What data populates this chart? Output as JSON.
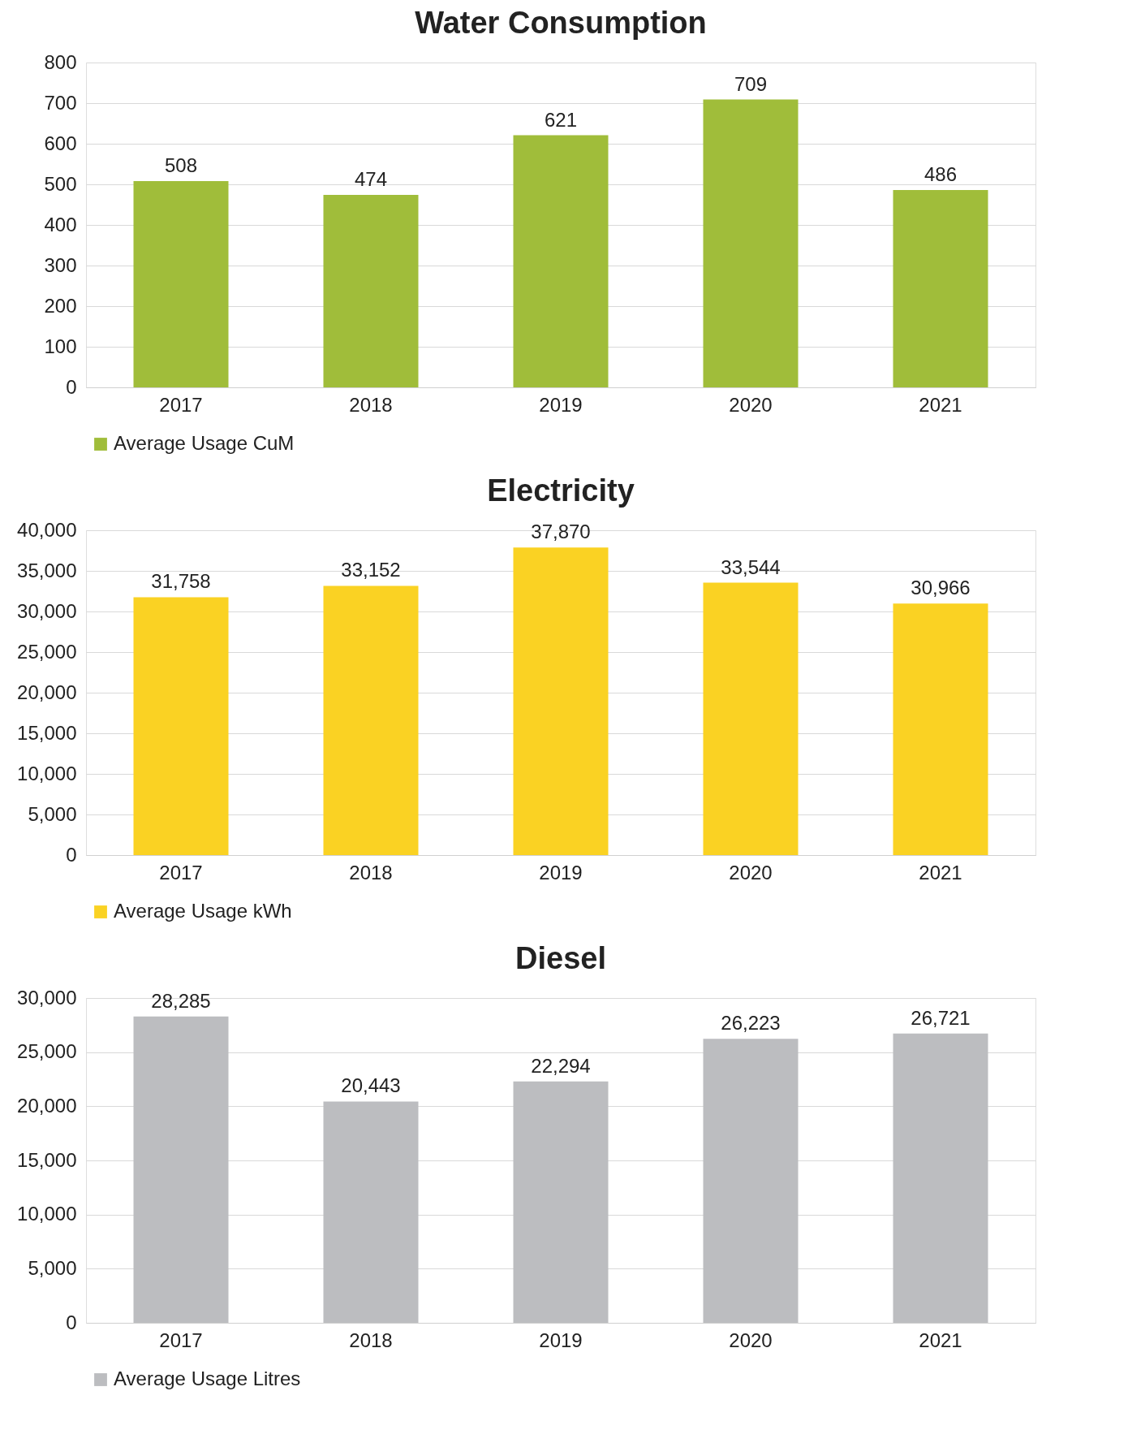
{
  "chart_data": [
    {
      "type": "bar",
      "title": "Water Consumption",
      "categories": [
        "2017",
        "2018",
        "2019",
        "2020",
        "2021"
      ],
      "series": [
        {
          "name": "Average Usage CuM",
          "color": "#a0bd3a",
          "values": [
            508,
            474,
            621,
            709,
            486
          ]
        }
      ],
      "ylim": [
        0,
        800
      ],
      "yticks": [
        0,
        100,
        200,
        300,
        400,
        500,
        600,
        700,
        800
      ],
      "grid": "y",
      "legend": "bottom",
      "data_labels": true
    },
    {
      "type": "bar",
      "title": "Electricity",
      "categories": [
        "2017",
        "2018",
        "2019",
        "2020",
        "2021"
      ],
      "series": [
        {
          "name": "Average Usage kWh",
          "color": "#fad223",
          "values": [
            31758,
            33152,
            37870,
            33544,
            30966
          ],
          "value_labels": [
            "31,758",
            "33,152",
            "37,870",
            "33,544",
            "30,966"
          ]
        }
      ],
      "ylim": [
        0,
        40000
      ],
      "yticks": [
        0,
        {
          "value": 5000,
          "label": "5,000"
        },
        {
          "value": 10000,
          "label": "10,000"
        },
        {
          "value": 15000,
          "label": "15,000"
        },
        {
          "value": 20000,
          "label": "20,000"
        },
        {
          "value": 25000,
          "label": "25,000"
        },
        {
          "value": 30000,
          "label": "30,000"
        },
        {
          "value": 35000,
          "label": "35,000"
        },
        {
          "value": 40000,
          "label": "40,000"
        }
      ],
      "grid": "y",
      "legend": "bottom"
    },
    {
      "type": "bar",
      "title": "Diesel",
      "categories": [
        "2017",
        "2018",
        "2019",
        "2020",
        "2021"
      ],
      "series": [
        {
          "name": "Average Usage Litres",
          "color": "#bcbdc0",
          "values": [
            28285,
            20443,
            22294,
            26223,
            26721
          ],
          "value_labels": [
            "28,285",
            "20,443",
            "22,294",
            "26,223",
            "26,721"
          ]
        }
      ],
      "ylim": [
        0,
        30000
      ],
      "yticks": [
        0,
        {
          "value": 5000,
          "label": "5,000"
        },
        {
          "value": 10000,
          "label": "10,000"
        },
        {
          "value": 15000,
          "label": "15,000"
        },
        {
          "value": 20000,
          "label": "20,000"
        },
        {
          "value": 25000,
          "label": "25,000"
        },
        {
          "value": 30000,
          "label": "30,000"
        }
      ],
      "grid": "y",
      "legend": "bottom"
    }
  ]
}
